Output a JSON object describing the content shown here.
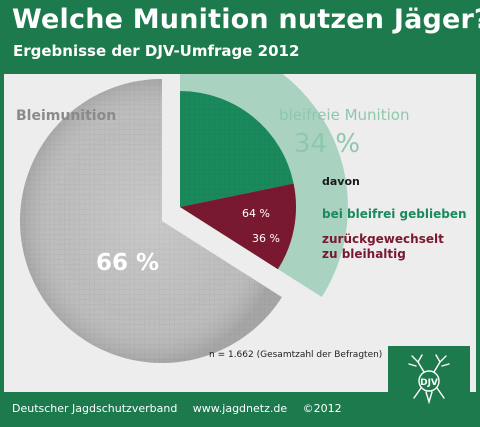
{
  "header": {
    "title": "Welche Munition nutzen Jäger?",
    "subtitle": "Ergebnisse der DJV-Umfrage 2012"
  },
  "chart_data": {
    "type": "pie",
    "slices": [
      {
        "label": "Bleimunition",
        "value": 66,
        "color": "#bdbdbd"
      },
      {
        "label": "bleifreie Munition",
        "value": 34,
        "color": "#a9d3c0"
      }
    ],
    "sub_breakdown": {
      "parent": "bleifreie Munition",
      "heading": "davon",
      "slices": [
        {
          "label": "bei bleifrei geblieben",
          "value": 64,
          "color": "#1a8a5c"
        },
        {
          "label": "zurückgewechselt zu bleihaltig",
          "value": 36,
          "color": "#7a1830"
        }
      ]
    },
    "labels": {
      "lead": "Bleimunition",
      "lead_pct": "66 %",
      "free": "bleifreie Munition",
      "free_pct": "34 %",
      "inner_stay_pct": "64 %",
      "inner_back_pct": "36 %",
      "stay": "bei bleifrei geblieben",
      "back_line1": "zurückgewechselt",
      "back_line2": "zu bleihaltig"
    },
    "note": "n = 1.662 (Gesamtzahl der Befragten)"
  },
  "footer": {
    "org": "Deutscher Jagdschutzverband",
    "url": "www.jagdnetz.de",
    "copyright": "©2012"
  },
  "colors": {
    "brand_green": "#1c7a4d",
    "panel_bg": "#ededed",
    "lead_gray": "#bdbdbd",
    "free_light_green": "#a9d3c0",
    "stay_green": "#1a8a5c",
    "back_maroon": "#7a1830"
  },
  "logo": {
    "icon": "stag-emblem-icon",
    "letters": "DJV"
  }
}
